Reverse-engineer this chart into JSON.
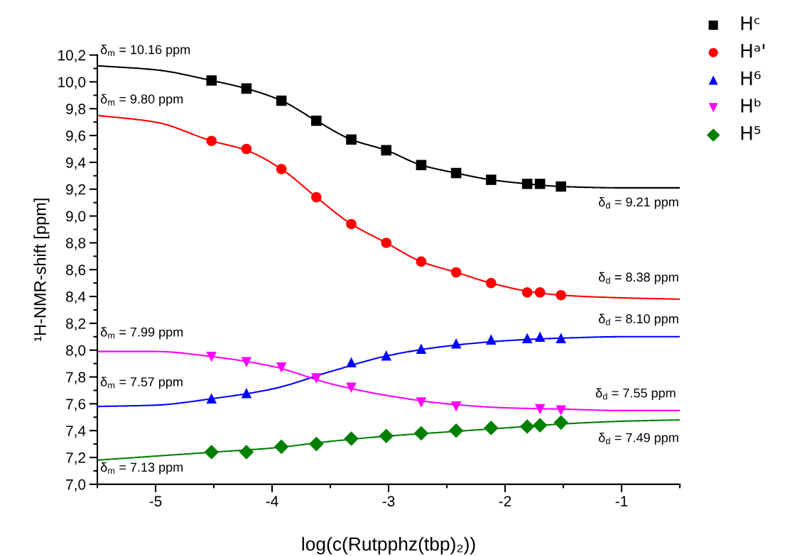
{
  "chart_data": {
    "type": "scatter",
    "xlabel": "log(c(Rutpphz(tbp)₂))",
    "ylabel": "¹H-NMR-shift [ppm]",
    "x": [
      -4.52,
      -4.22,
      -3.92,
      -3.62,
      -3.32,
      -3.02,
      -2.72,
      -2.42,
      -2.12,
      -1.81,
      -1.7,
      -1.52
    ],
    "series": [
      {
        "name": "Hᶜ",
        "color": "#000000",
        "marker": "square",
        "values": [
          10.01,
          9.95,
          9.86,
          9.71,
          9.57,
          9.49,
          9.38,
          9.32,
          9.27,
          9.24,
          9.24,
          9.22
        ]
      },
      {
        "name": "Hᵃ'",
        "color": "#ff0000",
        "marker": "circle",
        "values": [
          9.56,
          9.5,
          9.35,
          9.14,
          8.94,
          8.8,
          8.66,
          8.58,
          8.5,
          8.43,
          8.43,
          8.41
        ]
      },
      {
        "name": "H⁶",
        "color": "#0000ff",
        "marker": "triangle",
        "values": [
          7.64,
          7.68,
          null,
          null,
          7.91,
          7.96,
          8.01,
          8.05,
          8.08,
          8.09,
          8.1,
          8.09
        ]
      },
      {
        "name": "Hᵇ",
        "color": "#ff00ff",
        "marker": "triangle_down",
        "values": [
          7.95,
          7.91,
          7.87,
          7.79,
          7.72,
          null,
          7.61,
          7.58,
          null,
          null,
          7.56,
          7.55
        ]
      },
      {
        "name": "H⁵",
        "color": "#008000",
        "marker": "diamond",
        "values": [
          7.24,
          7.24,
          7.28,
          7.3,
          7.34,
          7.36,
          7.38,
          7.4,
          7.42,
          7.43,
          7.44,
          7.46
        ]
      },
      {
        "type": "line",
        "color": "#000000",
        "x": [
          -5.5,
          -5,
          -4.52,
          -4.22,
          -3.92,
          -3.62,
          -3.32,
          -3.02,
          -2.72,
          -2.42,
          -2.12,
          -1.81,
          -1.52,
          -1,
          -0.5
        ],
        "values": [
          10.12,
          10.09,
          10.01,
          9.95,
          9.86,
          9.71,
          9.57,
          9.49,
          9.38,
          9.32,
          9.27,
          9.24,
          9.22,
          9.21,
          9.21
        ]
      },
      {
        "type": "line",
        "color": "#ff0000",
        "x": [
          -5.5,
          -5,
          -4.52,
          -4.22,
          -3.92,
          -3.62,
          -3.32,
          -3.02,
          -2.72,
          -2.42,
          -2.12,
          -1.81,
          -1.52,
          -1,
          -0.5
        ],
        "values": [
          9.75,
          9.7,
          9.56,
          9.49,
          9.35,
          9.14,
          8.94,
          8.8,
          8.66,
          8.58,
          8.5,
          8.44,
          8.41,
          8.39,
          8.38
        ]
      },
      {
        "type": "line",
        "color": "#0000ff",
        "x": [
          -5.5,
          -5,
          -4.5,
          -4,
          -3.5,
          -3,
          -2.5,
          -2,
          -1.5,
          -1,
          -0.5
        ],
        "values": [
          7.58,
          7.59,
          7.64,
          7.71,
          7.84,
          7.96,
          8.03,
          8.07,
          8.09,
          8.1,
          8.1
        ]
      },
      {
        "type": "line",
        "color": "#ff00ff",
        "x": [
          -5.5,
          -5,
          -4.5,
          -4,
          -3.5,
          -3,
          -2.5,
          -2,
          -1.5,
          -1,
          -0.5
        ],
        "values": [
          7.99,
          7.99,
          7.95,
          7.88,
          7.75,
          7.66,
          7.6,
          7.57,
          7.56,
          7.55,
          7.55
        ]
      },
      {
        "type": "line",
        "color": "#008000",
        "x": [
          -5.5,
          -5,
          -4.5,
          -4,
          -3.5,
          -3,
          -2.5,
          -2,
          -1.5,
          -1,
          -0.5
        ],
        "values": [
          7.18,
          7.21,
          7.24,
          7.27,
          7.32,
          7.36,
          7.39,
          7.42,
          7.45,
          7.47,
          7.48
        ]
      }
    ],
    "xlim": [
      -5.5,
      -0.5
    ],
    "xticks": [
      -5,
      -4,
      -3,
      -2,
      -1
    ],
    "ylim": [
      7.0,
      10.2
    ],
    "yticks": [
      {
        "value": 7.0,
        "label": "7,0"
      },
      {
        "value": 7.2,
        "label": "7,2"
      },
      {
        "value": 7.4,
        "label": "7,4"
      },
      {
        "value": 7.6,
        "label": "7,6"
      },
      {
        "value": 7.8,
        "label": "7,8"
      },
      {
        "value": 8.0,
        "label": "8,0"
      },
      {
        "value": 8.2,
        "label": "8,2"
      },
      {
        "value": 8.4,
        "label": "8,4"
      },
      {
        "value": 8.6,
        "label": "8,6"
      },
      {
        "value": 8.8,
        "label": "8,8"
      },
      {
        "value": 9.0,
        "label": "9,0"
      },
      {
        "value": 9.2,
        "label": "9,2"
      },
      {
        "value": 9.4,
        "label": "9,4"
      },
      {
        "value": 9.6,
        "label": "9,6"
      },
      {
        "value": 9.8,
        "label": "9,8"
      },
      {
        "value": 10.0,
        "label": "10,0"
      },
      {
        "value": 10.2,
        "label": "10,2"
      }
    ],
    "grid": false,
    "legend": "top right",
    "line_style": "solid",
    "annotations": [
      "δ$_{m}$ = 10.16 ppm",
      "δ$_{m}$ = 9.80 ppm",
      "δ$_{m}$ = 7.99 ppm",
      "δ$_{m}$ = 7.57 ppm",
      "δ$_{m}$ = 7.13 ppm",
      "δ$_{d}$ = 9.21 ppm",
      "δ$_{d}$ = 8.38 ppm",
      "δ$_{d}$ = 8.10 ppm",
      "δ$_{d}$ = 7.55 ppm",
      "δ$_{d}$ = 7.49 ppm"
    ]
  }
}
